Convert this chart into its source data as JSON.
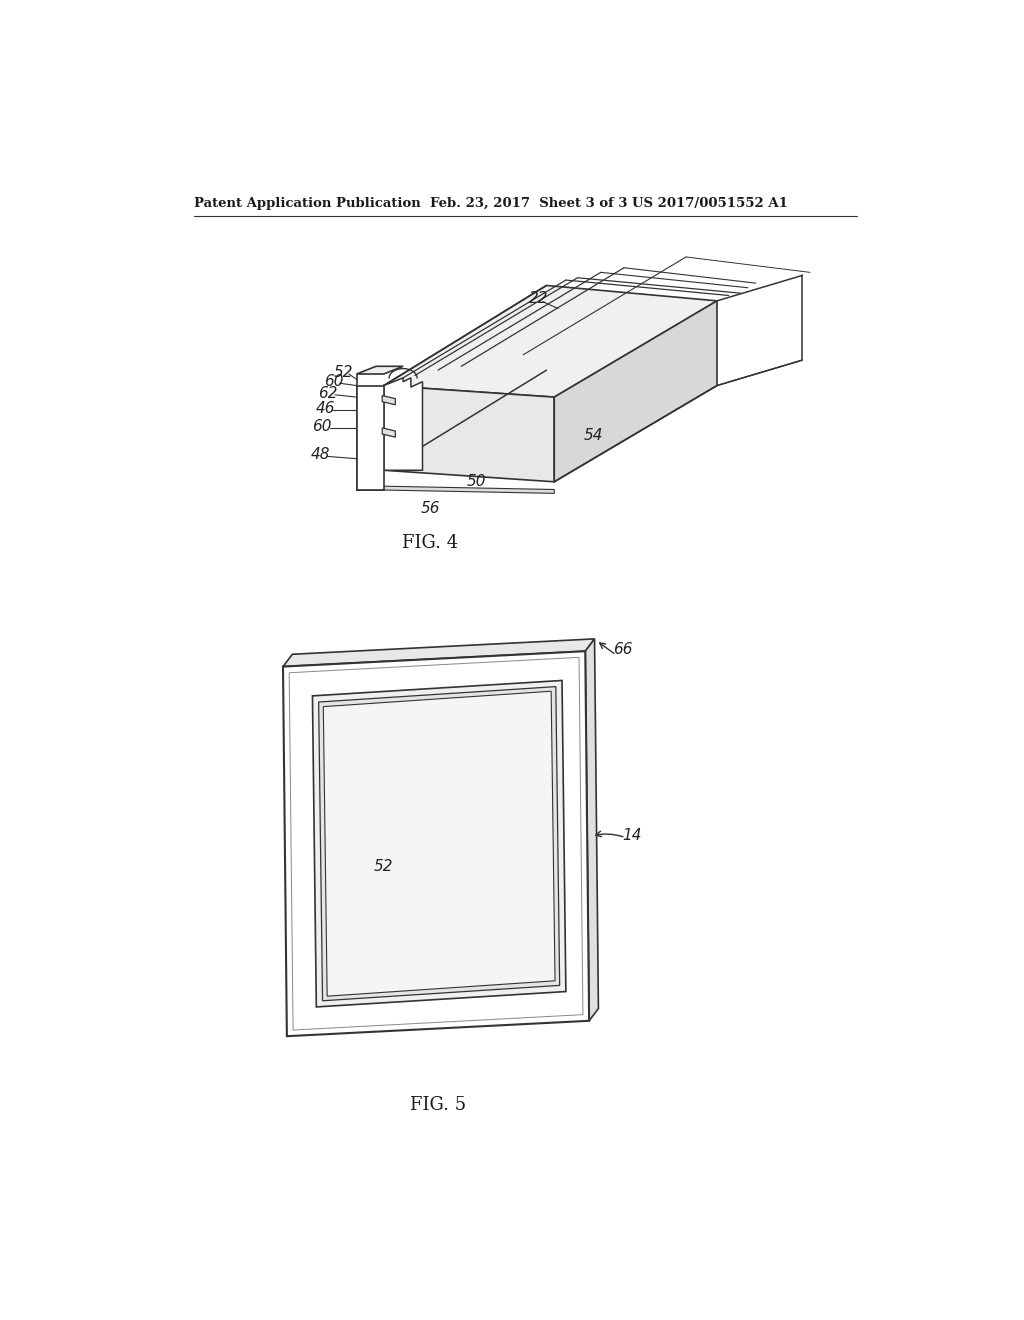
{
  "bg_color": "#ffffff",
  "header_left": "Patent Application Publication",
  "header_mid": "Feb. 23, 2017  Sheet 3 of 3",
  "header_right": "US 2017/0051552 A1",
  "fig4_label": "FIG. 4",
  "fig5_label": "FIG. 5",
  "text_color": "#1a1a1a",
  "line_color": "#333333",
  "label_color": "#222222"
}
